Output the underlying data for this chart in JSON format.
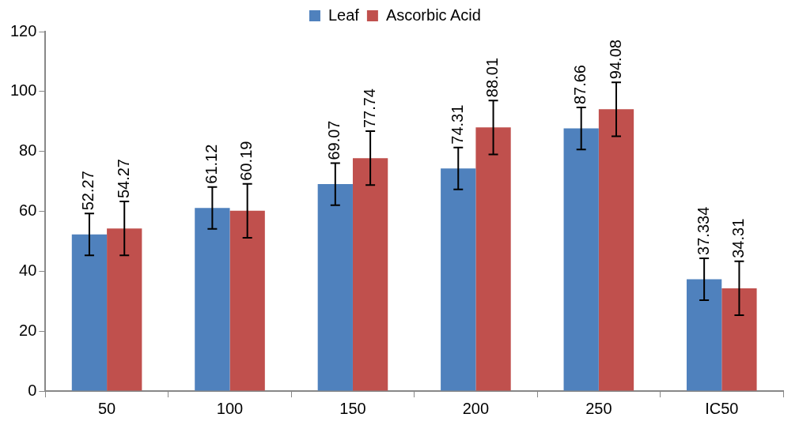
{
  "chart_data": {
    "type": "bar",
    "categories": [
      "50",
      "100",
      "150",
      "200",
      "250",
      "IC50"
    ],
    "series": [
      {
        "name": "Leaf",
        "color": "#4f81bd",
        "values": [
          52.27,
          61.12,
          69.07,
          74.31,
          87.66,
          37.334
        ],
        "errors": [
          7,
          7,
          7,
          7,
          7,
          7
        ]
      },
      {
        "name": "Ascorbic Acid",
        "color": "#c0504d",
        "values": [
          54.27,
          60.19,
          77.74,
          88.01,
          94.08,
          34.31
        ],
        "errors": [
          9,
          9,
          9,
          9,
          9,
          9
        ]
      }
    ],
    "ylim": [
      0,
      120
    ],
    "yticks": [
      0,
      20,
      40,
      60,
      80,
      100,
      120
    ],
    "grid": false,
    "legend": "top",
    "data_labels": true
  }
}
